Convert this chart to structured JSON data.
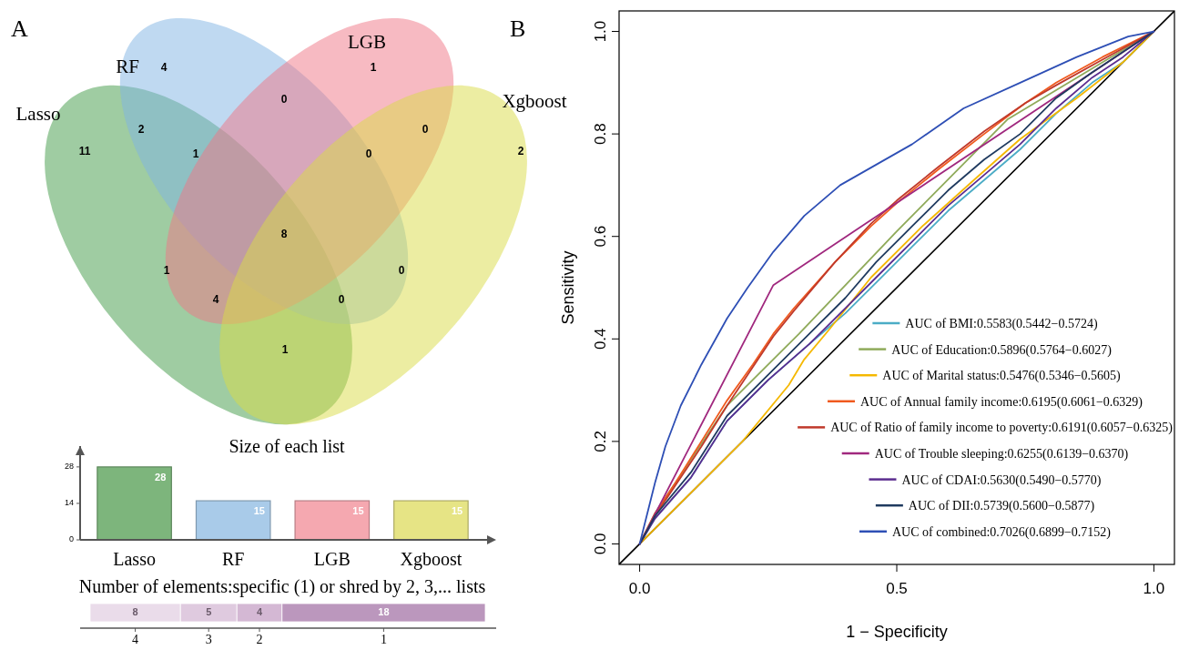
{
  "chart_data": [
    {
      "type": "other",
      "title": "A",
      "categories": [
        "Lasso",
        "RF",
        "LGB",
        "Xgboost"
      ],
      "colors": [
        "#3f9a45",
        "#7fb3e3",
        "#f07585",
        "#d9dc45"
      ],
      "annotations": [
        "11",
        "4",
        "1",
        "2",
        "2",
        "0",
        "0",
        "1",
        "1",
        "0",
        "1",
        "0",
        "0",
        "4",
        "8"
      ]
    },
    {
      "type": "bar",
      "title": "Size of each list",
      "categories": [
        "Lasso",
        "RF",
        "LGB",
        "Xgboost"
      ],
      "values": [
        28,
        15,
        15,
        15
      ],
      "colors": [
        "#7db57c",
        "#a9cbe9",
        "#f5a8b0",
        "#e6e485"
      ],
      "ylim": [
        0,
        36
      ],
      "yticks": [
        0,
        14,
        28
      ],
      "data_labels": true
    },
    {
      "type": "bar",
      "orientation": "horizontal",
      "stacked": true,
      "title": "Number of elements:specific (1) or shred by 2, 3,... lists",
      "categories": [
        null
      ],
      "data_labels": true,
      "series": [
        {
          "name": "4",
          "color": "#eadcea",
          "values": [
            8
          ]
        },
        {
          "name": "3",
          "color": "#dfcadf",
          "values": [
            5
          ]
        },
        {
          "name": "2",
          "color": "#d4b8d4",
          "values": [
            4
          ]
        },
        {
          "name": "1",
          "color": "#bb97bd",
          "values": [
            18
          ]
        }
      ]
    },
    {
      "type": "line",
      "title": "B",
      "xlabel": "1 − Specificity",
      "ylabel": "Sensitivity",
      "xlim": [
        -0.04,
        1.04
      ],
      "ylim": [
        -0.04,
        1.04
      ],
      "xticks": [
        {
          "value": 0,
          "label": "0.0"
        },
        {
          "value": 0.5,
          "label": "0.5"
        },
        {
          "value": 1,
          "label": "1.0"
        }
      ],
      "yticks": [
        {
          "value": 0,
          "label": "0.0"
        },
        {
          "value": 0.2,
          "label": "0.2"
        },
        {
          "value": 0.4,
          "label": "0.4"
        },
        {
          "value": 0.6,
          "label": "0.6"
        },
        {
          "value": 0.8,
          "label": "0.8"
        },
        {
          "value": 1,
          "label": "1.0"
        }
      ],
      "legend": "bottom right",
      "series": [
        {
          "color": "#000000",
          "x": [
            -0.04,
            1.04
          ],
          "values": [
            -0.04,
            1.04
          ]
        },
        {
          "name": "AUC of BMI:0.5583(0.5442−0.5724)",
          "color": "#4bacc6",
          "x": [
            0,
            0.03,
            0.1,
            0.17,
            0.25,
            0.33,
            0.4,
            0.46,
            0.53,
            0.6,
            0.67,
            0.74,
            0.81,
            0.88,
            0.94,
            1
          ],
          "values": [
            0,
            0.05,
            0.13,
            0.24,
            0.32,
            0.39,
            0.45,
            0.51,
            0.58,
            0.65,
            0.71,
            0.77,
            0.84,
            0.9,
            0.94,
            1
          ]
        },
        {
          "name": "AUC of Education:0.5896(0.5764−0.6027)",
          "color": "#8faa5a",
          "x": [
            0,
            0.03,
            0.17,
            0.31,
            0.5,
            0.715,
            1
          ],
          "values": [
            0,
            0.06,
            0.27,
            0.41,
            0.61,
            0.828,
            1
          ]
        },
        {
          "name": "AUC of Marital status:0.5476(0.5346−0.5605)",
          "color": "#f5b800",
          "x": [
            0,
            0.1,
            0.2,
            0.29,
            0.32,
            0.37,
            0.45,
            0.55,
            0.65,
            0.74,
            0.85,
            0.94,
            1
          ],
          "values": [
            0,
            0.1,
            0.2,
            0.31,
            0.36,
            0.42,
            0.52,
            0.62,
            0.71,
            0.79,
            0.87,
            0.94,
            1
          ]
        },
        {
          "name": "AUC of Annual family income:0.6195(0.6061−0.6329)",
          "color": "#f05a1e",
          "x": [
            0,
            0.03,
            0.07,
            0.12,
            0.17,
            0.22,
            0.26,
            0.3,
            0.38,
            0.45,
            0.5,
            0.58,
            0.67,
            0.75,
            0.81,
            0.9,
            1
          ],
          "values": [
            0,
            0.06,
            0.12,
            0.2,
            0.28,
            0.35,
            0.41,
            0.46,
            0.55,
            0.62,
            0.665,
            0.73,
            0.8,
            0.86,
            0.9,
            0.95,
            1
          ]
        },
        {
          "name": "AUC of Ratio of family income to poverty:0.6191(0.6057−0.6325)",
          "color": "#c0392b",
          "x": [
            0,
            0.03,
            0.07,
            0.12,
            0.17,
            0.22,
            0.26,
            0.3,
            0.38,
            0.45,
            0.5,
            0.58,
            0.67,
            0.75,
            0.81,
            0.9,
            1
          ],
          "values": [
            0,
            0.055,
            0.115,
            0.19,
            0.27,
            0.345,
            0.405,
            0.455,
            0.55,
            0.625,
            0.67,
            0.735,
            0.805,
            0.86,
            0.895,
            0.945,
            1
          ]
        },
        {
          "name": "AUC of Trouble sleeping:0.6255(0.6139−0.6370)",
          "color": "#a0287e",
          "x": [
            0,
            0.26,
            1
          ],
          "values": [
            0,
            0.505,
            1
          ]
        },
        {
          "name": "AUC of CDAI:0.5630(0.5490−0.5770)",
          "color": "#5b2c8f",
          "x": [
            0,
            0.03,
            0.1,
            0.17,
            0.25,
            0.33,
            0.4,
            0.46,
            0.53,
            0.6,
            0.67,
            0.74,
            0.81,
            0.88,
            0.94,
            1
          ],
          "values": [
            0,
            0.05,
            0.13,
            0.24,
            0.32,
            0.39,
            0.46,
            0.52,
            0.59,
            0.66,
            0.72,
            0.78,
            0.85,
            0.91,
            0.95,
            1
          ]
        },
        {
          "name": "AUC of DII:0.5739(0.5600−0.5877)",
          "color": "#1f3a5f",
          "x": [
            0,
            0.03,
            0.1,
            0.17,
            0.25,
            0.33,
            0.4,
            0.46,
            0.53,
            0.6,
            0.67,
            0.74,
            0.81,
            0.88,
            0.94,
            1
          ],
          "values": [
            0,
            0.055,
            0.14,
            0.25,
            0.33,
            0.41,
            0.48,
            0.55,
            0.62,
            0.69,
            0.75,
            0.8,
            0.87,
            0.92,
            0.96,
            1
          ]
        },
        {
          "name": "AUC of combined:0.7026(0.6899−0.7152)",
          "color": "#2e4fb5",
          "x": [
            0,
            0.01,
            0.03,
            0.05,
            0.08,
            0.12,
            0.17,
            0.21,
            0.26,
            0.32,
            0.39,
            0.46,
            0.53,
            0.63,
            0.74,
            0.85,
            0.95,
            1
          ],
          "values": [
            0,
            0.04,
            0.12,
            0.19,
            0.27,
            0.35,
            0.44,
            0.5,
            0.57,
            0.64,
            0.7,
            0.74,
            0.78,
            0.85,
            0.9,
            0.95,
            0.99,
            1
          ]
        }
      ]
    }
  ]
}
